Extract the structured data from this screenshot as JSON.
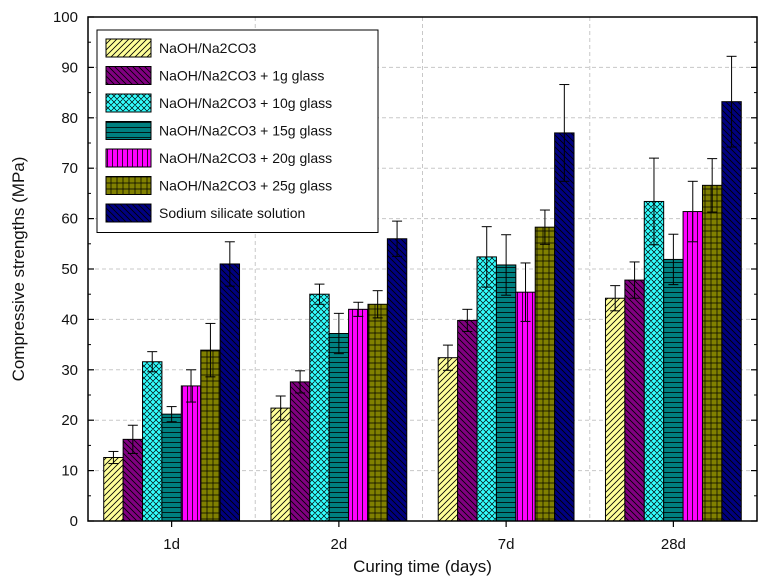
{
  "chart_data": {
    "type": "bar",
    "xlabel": "Curing time (days)",
    "ylabel": "Compressive strengths (MPa)",
    "ylim": [
      0,
      100
    ],
    "yticks": [
      0,
      10,
      20,
      30,
      40,
      50,
      60,
      70,
      80,
      90,
      100
    ],
    "categories": [
      "1d",
      "2d",
      "7d",
      "28d"
    ],
    "grid": true,
    "legend_position": "top-left",
    "series": [
      {
        "name": "NaOH/Na2CO3",
        "values": [
          12.6,
          22.4,
          32.4,
          44.2
        ],
        "errors": [
          1.2,
          2.4,
          2.5,
          2.5
        ],
        "color": "#ffff99",
        "pattern": "diag-right"
      },
      {
        "name": "NaOH/Na2CO3 + 1g glass",
        "values": [
          16.2,
          27.6,
          39.8,
          47.8
        ],
        "errors": [
          2.8,
          2.2,
          2.2,
          3.6
        ],
        "color": "#800080",
        "pattern": "diag-left"
      },
      {
        "name": "NaOH/Na2CO3 + 10g glass",
        "values": [
          31.6,
          45.0,
          52.4,
          63.4
        ],
        "errors": [
          2.0,
          2.0,
          6.0,
          8.6
        ],
        "color": "#33ffff",
        "pattern": "crosshatch"
      },
      {
        "name": "NaOH/Na2CO3 + 15g glass",
        "values": [
          21.2,
          37.2,
          50.8,
          51.9
        ],
        "errors": [
          1.5,
          4.0,
          6.0,
          5.0
        ],
        "color": "#008080",
        "pattern": "horizontal"
      },
      {
        "name": "NaOH/Na2CO3 + 20g glass",
        "values": [
          26.8,
          42.0,
          45.4,
          61.4
        ],
        "errors": [
          3.2,
          1.4,
          5.8,
          6.0
        ],
        "color": "#ff00ff",
        "pattern": "vertical"
      },
      {
        "name": "NaOH/Na2CO3 + 25g glass",
        "values": [
          33.9,
          43.0,
          58.3,
          66.6
        ],
        "errors": [
          5.3,
          2.7,
          3.4,
          5.3
        ],
        "color": "#808000",
        "pattern": "grid"
      },
      {
        "name": "Sodium silicate solution",
        "values": [
          51.0,
          56.0,
          77.0,
          83.2
        ],
        "errors": [
          4.4,
          3.5,
          9.6,
          9.0
        ],
        "color": "#000080",
        "pattern": "diag-left"
      }
    ]
  }
}
